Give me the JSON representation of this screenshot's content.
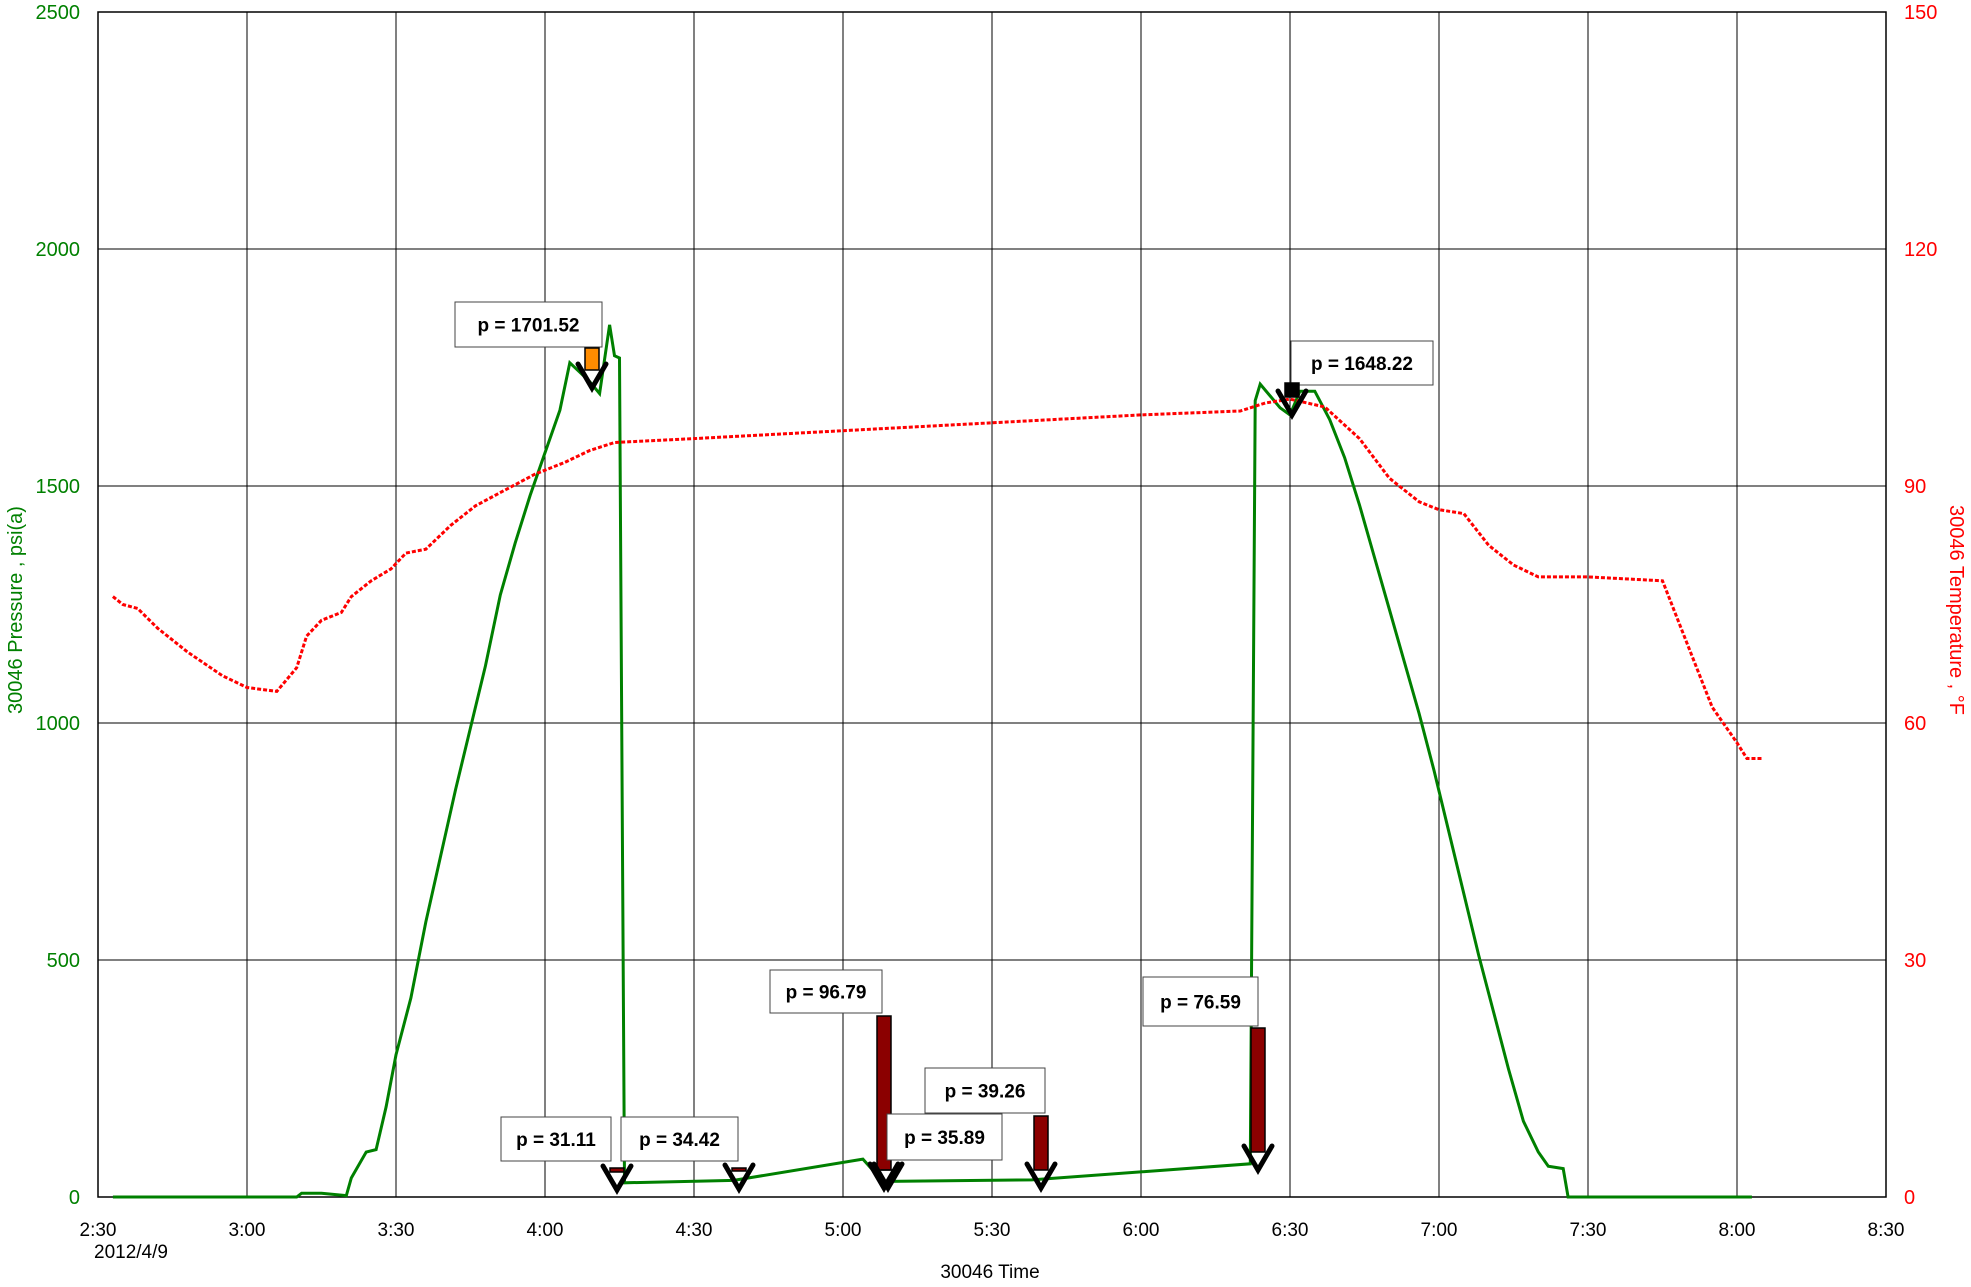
{
  "chart_data": {
    "type": "line",
    "xlabel": "30046 Time",
    "x_date_label": "2012/4/9",
    "ylabel_left": "30046 Pressure , psi(a)",
    "ylabel_right": "30046 Temperature , °F",
    "xlim": [
      "2:30",
      "8:30"
    ],
    "ylim_left": [
      0,
      2500
    ],
    "ylim_right": [
      0,
      150
    ],
    "x_ticks": [
      "2:30",
      "3:00",
      "3:30",
      "4:00",
      "4:30",
      "5:00",
      "5:30",
      "6:00",
      "6:30",
      "7:00",
      "7:30",
      "8:00",
      "8:30"
    ],
    "y_ticks_left": [
      "0",
      "500",
      "1000",
      "1500",
      "2000",
      "2500"
    ],
    "y_ticks_right": [
      "0",
      "30",
      "60",
      "90",
      "120",
      "150"
    ],
    "grid": true,
    "colors": {
      "pressure": "#008000",
      "temperature": "#ff0000",
      "grid": "#000000"
    },
    "series": [
      {
        "axis": "left",
        "style": "solid",
        "points": [
          [
            "2:33",
            0
          ],
          [
            "3:10",
            0
          ],
          [
            "3:11",
            8
          ],
          [
            "3:15",
            8
          ],
          [
            "3:20",
            3
          ],
          [
            "3:21",
            40
          ],
          [
            "3:24",
            95
          ],
          [
            "3:26",
            100
          ],
          [
            "3:28",
            190
          ],
          [
            "3:30",
            300
          ],
          [
            "3:33",
            420
          ],
          [
            "3:36",
            580
          ],
          [
            "3:39",
            720
          ],
          [
            "3:42",
            860
          ],
          [
            "3:45",
            990
          ],
          [
            "3:48",
            1120
          ],
          [
            "3:51",
            1270
          ],
          [
            "3:54",
            1380
          ],
          [
            "3:57",
            1480
          ],
          [
            "4:00",
            1570
          ],
          [
            "4:03",
            1660
          ],
          [
            "4:05",
            1760
          ],
          [
            "4:07",
            1740
          ],
          [
            "4:09",
            1720
          ],
          [
            "4:11",
            1695
          ],
          [
            "4:13",
            1840
          ],
          [
            "4:14",
            1775
          ],
          [
            "4:15",
            1770
          ],
          [
            "4:16",
            30
          ],
          [
            "4:38",
            35
          ],
          [
            "5:04",
            80
          ],
          [
            "5:08",
            33
          ],
          [
            "5:38",
            36
          ],
          [
            "6:22",
            70
          ],
          [
            "6:23",
            1680
          ],
          [
            "6:24",
            1715
          ],
          [
            "6:26",
            1690
          ],
          [
            "6:28",
            1665
          ],
          [
            "6:30",
            1650
          ],
          [
            "6:32",
            1700
          ],
          [
            "6:35",
            1700
          ],
          [
            "6:38",
            1640
          ],
          [
            "6:41",
            1560
          ],
          [
            "6:44",
            1460
          ],
          [
            "6:47",
            1350
          ],
          [
            "6:50",
            1240
          ],
          [
            "6:53",
            1130
          ],
          [
            "6:56",
            1020
          ],
          [
            "6:59",
            900
          ],
          [
            "7:02",
            770
          ],
          [
            "7:05",
            640
          ],
          [
            "7:08",
            510
          ],
          [
            "7:11",
            390
          ],
          [
            "7:14",
            270
          ],
          [
            "7:17",
            160
          ],
          [
            "7:20",
            95
          ],
          [
            "7:22",
            65
          ],
          [
            "7:25",
            60
          ],
          [
            "7:26",
            0
          ],
          [
            "8:03",
            0
          ]
        ]
      },
      {
        "axis": "right",
        "style": "dashed",
        "points": [
          [
            "2:33",
            76
          ],
          [
            "2:35",
            75
          ],
          [
            "2:38",
            74.5
          ],
          [
            "2:42",
            72
          ],
          [
            "2:48",
            69
          ],
          [
            "2:55",
            66
          ],
          [
            "3:00",
            64.5
          ],
          [
            "3:06",
            64
          ],
          [
            "3:10",
            67
          ],
          [
            "3:12",
            71
          ],
          [
            "3:15",
            73
          ],
          [
            "3:19",
            74
          ],
          [
            "3:21",
            76
          ],
          [
            "3:25",
            78
          ],
          [
            "3:29",
            79.5
          ],
          [
            "3:32",
            81.5
          ],
          [
            "3:36",
            82
          ],
          [
            "3:41",
            85
          ],
          [
            "3:46",
            87.5
          ],
          [
            "3:52",
            89.5
          ],
          [
            "3:58",
            91.5
          ],
          [
            "4:04",
            93
          ],
          [
            "4:09",
            94.5
          ],
          [
            "4:14",
            95.5
          ],
          [
            "4:30",
            96
          ],
          [
            "5:00",
            97
          ],
          [
            "5:30",
            98
          ],
          [
            "6:00",
            99
          ],
          [
            "6:20",
            99.5
          ],
          [
            "6:25",
            100.5
          ],
          [
            "6:30",
            101
          ],
          [
            "6:37",
            100
          ],
          [
            "6:44",
            96
          ],
          [
            "6:50",
            91
          ],
          [
            "6:56",
            88
          ],
          [
            "7:00",
            87
          ],
          [
            "7:05",
            86.5
          ],
          [
            "7:10",
            82.5
          ],
          [
            "7:15",
            80
          ],
          [
            "7:20",
            78.5
          ],
          [
            "7:30",
            78.5
          ],
          [
            "7:45",
            78
          ],
          [
            "7:50",
            70
          ],
          [
            "7:55",
            62
          ],
          [
            "8:00",
            57.5
          ],
          [
            "8:02",
            55.5
          ],
          [
            "8:05",
            55.5
          ]
        ]
      }
    ],
    "annotations": [
      {
        "label": "p = 1701.52",
        "color": "#ff8c00"
      },
      {
        "label": "p = 1648.22",
        "color": "#000000"
      },
      {
        "label": "p = 31.11",
        "color": "#8b0000"
      },
      {
        "label": "p = 34.42",
        "color": "#8b0000"
      },
      {
        "label": "p = 96.79",
        "color": "#8b0000"
      },
      {
        "label": "p = 35.89",
        "color": "#8b0000"
      },
      {
        "label": "p = 39.26",
        "color": "#8b0000"
      },
      {
        "label": "p = 76.59",
        "color": "#8b0000"
      }
    ]
  }
}
